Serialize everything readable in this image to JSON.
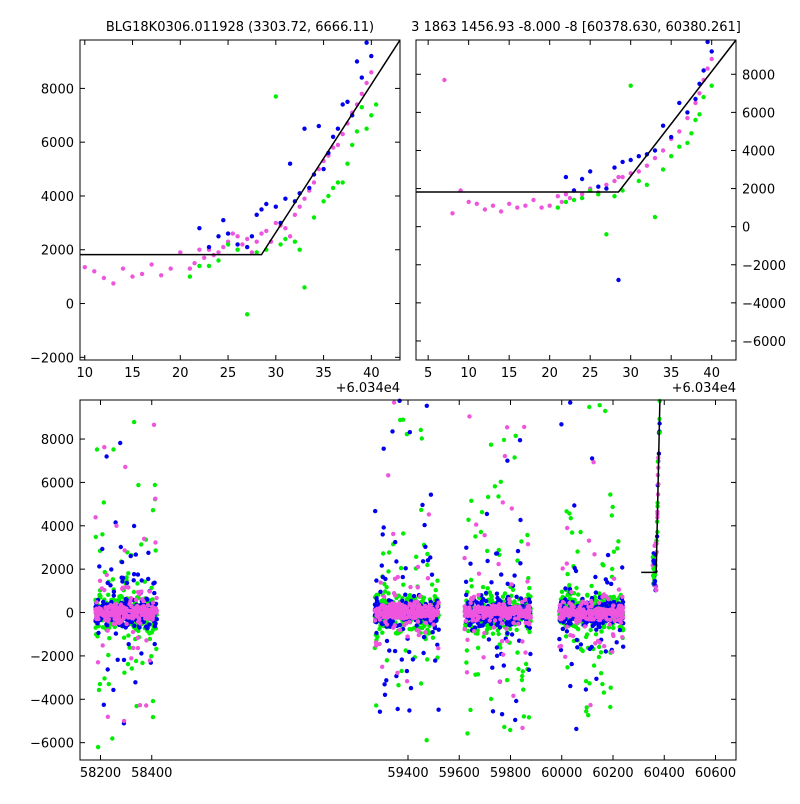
{
  "figure": {
    "panels": [
      {
        "id": "top-left",
        "title": "BLG18K0306.011928 (3303.72, 6666.11)",
        "xlim": [
          9.5,
          43
        ],
        "ylim": [
          -2100,
          9800
        ],
        "x_offset_label": "+6.034e4",
        "x_ticks": [
          10,
          15,
          20,
          25,
          30,
          35,
          40
        ],
        "y_ticks": [
          -2000,
          0,
          2000,
          4000,
          6000,
          8000
        ],
        "y_axis_side": "left",
        "model": [
          [
            9.5,
            1820
          ],
          [
            28.5,
            1820
          ],
          [
            43,
            9800
          ]
        ]
      },
      {
        "id": "top-right",
        "title": "3 1863 1456.93 -8.000 -8 [60378.630, 60380.261]",
        "xlim": [
          3.5,
          43
        ],
        "ylim": [
          -7000,
          9800
        ],
        "x_offset_label": "+6.034e4",
        "x_ticks": [
          5,
          10,
          15,
          20,
          25,
          30,
          35,
          40
        ],
        "y_ticks": [
          -6000,
          -4000,
          -2000,
          0,
          2000,
          4000,
          6000,
          8000
        ],
        "y_axis_side": "right",
        "model": [
          [
            3.5,
            1820
          ],
          [
            28.5,
            1820
          ],
          [
            43,
            9800
          ]
        ]
      },
      {
        "id": "bottom",
        "title": "",
        "xlim": [
          58120,
          60680
        ],
        "ylim": [
          -6800,
          9800
        ],
        "x_offset_label": "",
        "x_ticks": [
          58200,
          58400,
          59400,
          59600,
          59800,
          60000,
          60200,
          60400,
          60600
        ],
        "y_ticks": [
          -6000,
          -4000,
          -2000,
          0,
          2000,
          4000,
          6000,
          8000
        ],
        "y_axis_side": "left",
        "model": [
          [
            60310,
            1850
          ],
          [
            60368.5,
            1850
          ],
          [
            60383,
            9800
          ]
        ]
      }
    ]
  },
  "chart_data": [
    {
      "type": "scatter",
      "title": "BLG18K0306.011928 (3303.72, 6666.11)",
      "x_offset": 60340,
      "xlim": [
        9.5,
        43
      ],
      "ylim": [
        -2100,
        9800
      ],
      "series": [
        {
          "color": "#ee55dd",
          "points": [
            [
              10,
              1350
            ],
            [
              11,
              1200
            ],
            [
              12,
              950
            ],
            [
              13,
              750
            ],
            [
              14,
              1300
            ],
            [
              15,
              1000
            ],
            [
              16,
              1100
            ],
            [
              17,
              1450
            ],
            [
              18,
              1050
            ],
            [
              19,
              1300
            ],
            [
              20,
              1900
            ],
            [
              21,
              1300
            ],
            [
              21.5,
              1500
            ],
            [
              22,
              2000
            ],
            [
              22.5,
              1700
            ],
            [
              23,
              2000
            ],
            [
              23.5,
              1800
            ],
            [
              24,
              1900
            ],
            [
              24.5,
              2100
            ],
            [
              25,
              2300
            ],
            [
              25.5,
              2600
            ],
            [
              26,
              2500
            ],
            [
              26.5,
              2200
            ],
            [
              27,
              2400
            ],
            [
              27.5,
              1900
            ],
            [
              28,
              2300
            ],
            [
              28.5,
              2600
            ],
            [
              29,
              2700
            ],
            [
              29.5,
              2300
            ],
            [
              30,
              3000
            ],
            [
              30.5,
              2900
            ],
            [
              31,
              2800
            ],
            [
              31.5,
              2500
            ],
            [
              32,
              3300
            ],
            [
              32.5,
              3600
            ],
            [
              33,
              3900
            ],
            [
              33.5,
              4200
            ],
            [
              34,
              4500
            ],
            [
              34.5,
              5000
            ],
            [
              35,
              5300
            ],
            [
              35.5,
              5500
            ],
            [
              36,
              5800
            ],
            [
              36.5,
              5900
            ],
            [
              37,
              6300
            ],
            [
              37.5,
              6700
            ],
            [
              38,
              7100
            ],
            [
              38.5,
              7400
            ],
            [
              39,
              7800
            ],
            [
              39.5,
              8200
            ],
            [
              40,
              8600
            ]
          ]
        },
        {
          "color": "#0000ee",
          "points": [
            [
              22,
              2800
            ],
            [
              23,
              2100
            ],
            [
              24,
              2500
            ],
            [
              24.5,
              3100
            ],
            [
              25,
              2600
            ],
            [
              26,
              2200
            ],
            [
              27,
              2100
            ],
            [
              27.5,
              2500
            ],
            [
              28,
              3300
            ],
            [
              28.5,
              3500
            ],
            [
              29,
              3700
            ],
            [
              30,
              3600
            ],
            [
              30.5,
              3000
            ],
            [
              31,
              3900
            ],
            [
              31.5,
              5200
            ],
            [
              32,
              3800
            ],
            [
              32.5,
              4100
            ],
            [
              33,
              6500
            ],
            [
              33.5,
              4300
            ],
            [
              34,
              4800
            ],
            [
              34.5,
              6600
            ],
            [
              35,
              5000
            ],
            [
              35.5,
              5600
            ],
            [
              36,
              6200
            ],
            [
              36.5,
              6500
            ],
            [
              37,
              7400
            ],
            [
              37.5,
              7500
            ],
            [
              38,
              7000
            ],
            [
              38.5,
              9000
            ],
            [
              39,
              8400
            ],
            [
              39.5,
              9700
            ],
            [
              40,
              9200
            ]
          ]
        },
        {
          "color": "#00ee00",
          "points": [
            [
              21,
              1000
            ],
            [
              22,
              1400
            ],
            [
              23,
              1400
            ],
            [
              24,
              1600
            ],
            [
              25,
              2200
            ],
            [
              26,
              2000
            ],
            [
              27,
              -400
            ],
            [
              28,
              1900
            ],
            [
              29,
              2000
            ],
            [
              30,
              7700
            ],
            [
              30.5,
              2200
            ],
            [
              31,
              2400
            ],
            [
              32,
              2300
            ],
            [
              32.5,
              2000
            ],
            [
              33,
              600
            ],
            [
              34,
              3200
            ],
            [
              35,
              3800
            ],
            [
              35.5,
              4000
            ],
            [
              36,
              4300
            ],
            [
              36.5,
              4500
            ],
            [
              37,
              4500
            ],
            [
              37.5,
              5200
            ],
            [
              38,
              5900
            ],
            [
              38.5,
              6400
            ],
            [
              39,
              7300
            ],
            [
              39.5,
              6500
            ],
            [
              40,
              7000
            ],
            [
              40.5,
              7400
            ]
          ]
        }
      ]
    },
    {
      "type": "scatter",
      "title": "3 1863 1456.93 -8.000 -8 [60378.630, 60380.261]",
      "x_offset": 60340,
      "xlim": [
        3.5,
        43
      ],
      "ylim": [
        -7000,
        9800
      ],
      "series": [
        {
          "color": "#ee55dd",
          "points": [
            [
              7,
              7700
            ],
            [
              8,
              700
            ],
            [
              9,
              1900
            ],
            [
              10,
              1300
            ],
            [
              11,
              1200
            ],
            [
              12,
              900
            ],
            [
              13,
              1100
            ],
            [
              14,
              800
            ],
            [
              15,
              1200
            ],
            [
              16,
              1000
            ],
            [
              17,
              1100
            ],
            [
              18,
              1400
            ],
            [
              19,
              1000
            ],
            [
              20,
              1100
            ],
            [
              21,
              1600
            ],
            [
              21.5,
              1300
            ],
            [
              22,
              1700
            ],
            [
              22.5,
              1500
            ],
            [
              23,
              1900
            ],
            [
              24,
              1700
            ],
            [
              25,
              2000
            ],
            [
              26,
              1800
            ],
            [
              27,
              2200
            ],
            [
              28,
              2400
            ],
            [
              28.5,
              2600
            ],
            [
              29,
              2600
            ],
            [
              30,
              2800
            ],
            [
              31,
              2900
            ],
            [
              32,
              3200
            ],
            [
              33,
              3600
            ],
            [
              34,
              4000
            ],
            [
              35,
              4600
            ],
            [
              36,
              5000
            ],
            [
              37,
              5700
            ],
            [
              38,
              6500
            ],
            [
              38.5,
              7000
            ],
            [
              39,
              7700
            ],
            [
              39.5,
              8300
            ],
            [
              40,
              8800
            ]
          ]
        },
        {
          "color": "#0000ee",
          "points": [
            [
              22,
              2600
            ],
            [
              23,
              1900
            ],
            [
              24,
              2500
            ],
            [
              25,
              2900
            ],
            [
              26,
              2100
            ],
            [
              27,
              2000
            ],
            [
              28,
              3100
            ],
            [
              28.5,
              -2800
            ],
            [
              29,
              3400
            ],
            [
              30,
              3500
            ],
            [
              31,
              3700
            ],
            [
              32,
              3800
            ],
            [
              33,
              4000
            ],
            [
              34,
              5300
            ],
            [
              35,
              4700
            ],
            [
              36,
              6500
            ],
            [
              37,
              6000
            ],
            [
              38,
              6700
            ],
            [
              38.5,
              7500
            ],
            [
              39,
              8200
            ],
            [
              39.5,
              9700
            ],
            [
              40,
              9200
            ]
          ]
        },
        {
          "color": "#00ee00",
          "points": [
            [
              21,
              1000
            ],
            [
              22,
              1300
            ],
            [
              23,
              1400
            ],
            [
              24,
              1500
            ],
            [
              25,
              1900
            ],
            [
              26,
              1700
            ],
            [
              27,
              -400
            ],
            [
              28,
              1600
            ],
            [
              29,
              1900
            ],
            [
              30,
              7400
            ],
            [
              31,
              2400
            ],
            [
              32,
              2200
            ],
            [
              33,
              500
            ],
            [
              34,
              3000
            ],
            [
              35,
              3700
            ],
            [
              36,
              4200
            ],
            [
              37,
              4400
            ],
            [
              37.5,
              4900
            ],
            [
              38,
              5600
            ],
            [
              38.5,
              5900
            ],
            [
              39,
              6800
            ],
            [
              40,
              7400
            ]
          ]
        }
      ]
    },
    {
      "type": "scatter",
      "title": "",
      "xlim": [
        58120,
        60680
      ],
      "ylim": [
        -6800,
        9800
      ],
      "seasons": [
        [
          58180,
          58420
        ],
        [
          59270,
          59520
        ],
        [
          59620,
          59880
        ],
        [
          59990,
          60240
        ]
      ],
      "series": [
        {
          "color": "#00ee00",
          "spread": 2800
        },
        {
          "color": "#0000ee",
          "spread": 1600
        },
        {
          "color": "#ee55dd",
          "spread": 900
        }
      ],
      "event": {
        "x_range": [
          60355,
          60383
        ]
      }
    }
  ]
}
